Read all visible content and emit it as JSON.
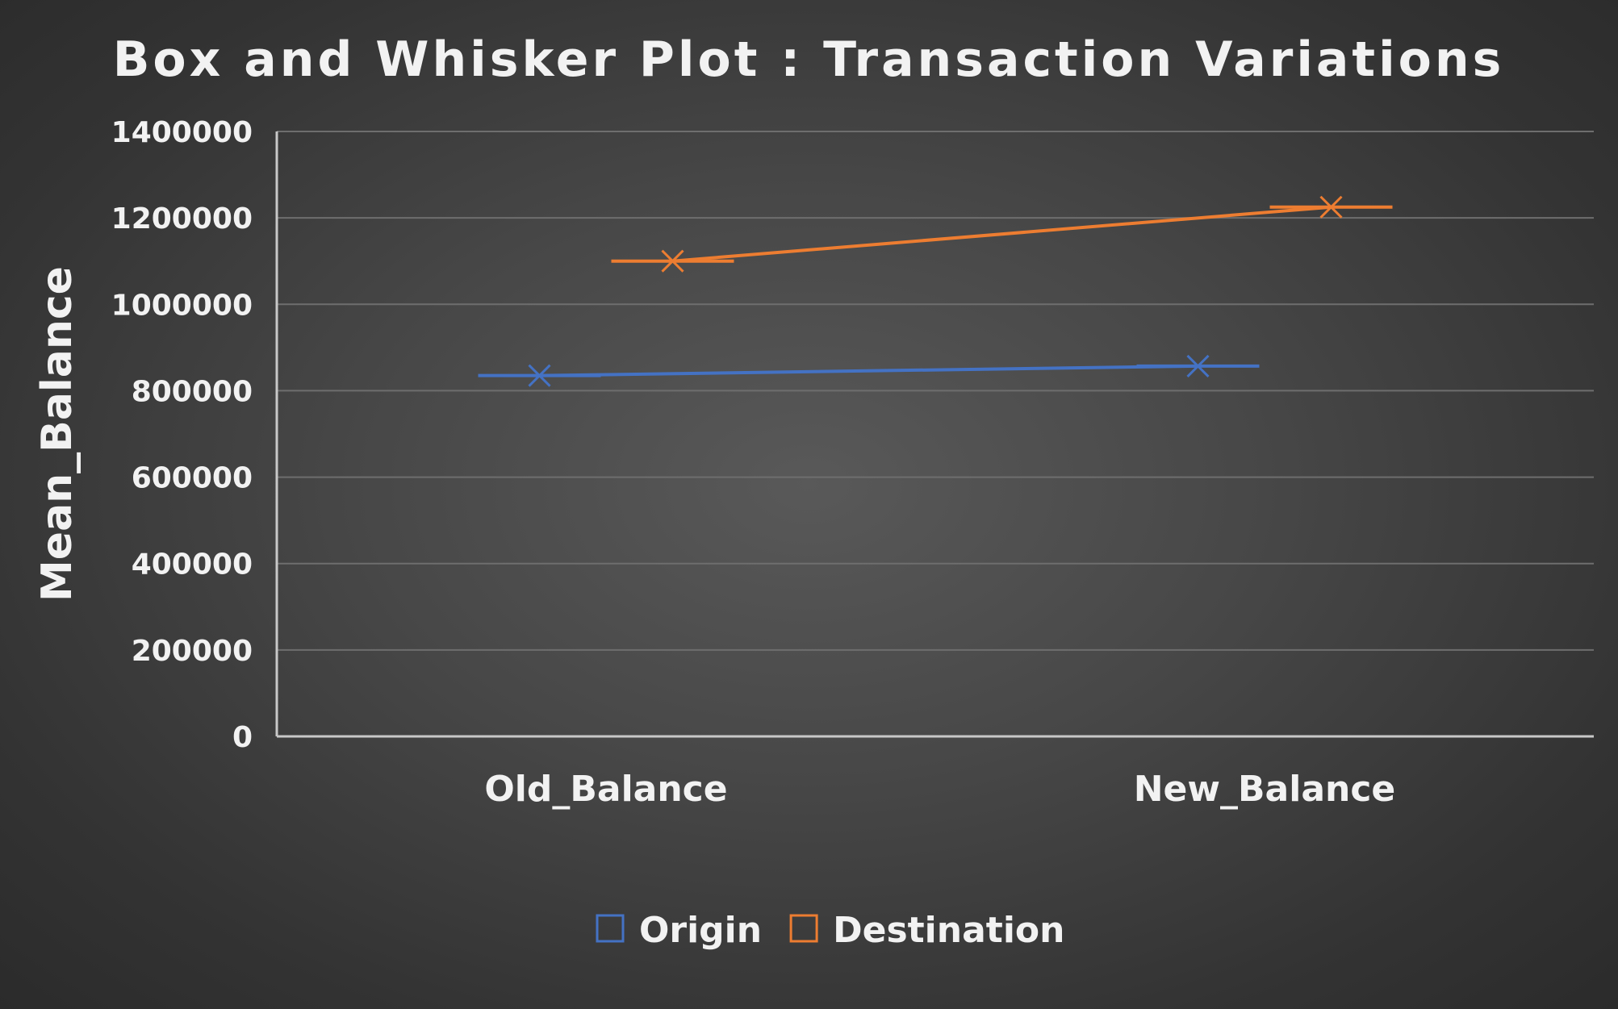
{
  "chart_data": {
    "type": "box",
    "title": "Box and Whisker Plot : Transaction Variations",
    "xlabel": "",
    "ylabel": "Mean_Balance",
    "categories": [
      "Old_Balance",
      "New_Balance"
    ],
    "ylim": [
      0,
      1400000
    ],
    "yticks": [
      {
        "value": 0,
        "label": "0"
      },
      {
        "value": 200000,
        "label": "200000"
      },
      {
        "value": 400000,
        "label": "400000"
      },
      {
        "value": 600000,
        "label": "600000"
      },
      {
        "value": 800000,
        "label": "800000"
      },
      {
        "value": 1000000,
        "label": "1000000"
      },
      {
        "value": 1200000,
        "label": "1200000"
      },
      {
        "value": 1400000,
        "label": "1400000"
      }
    ],
    "grid": true,
    "legend_position": "bottom",
    "series": [
      {
        "name": "Origin",
        "color": "#4472c4",
        "means": [
          835000,
          857000
        ],
        "medians": [
          835000,
          857000
        ]
      },
      {
        "name": "Destination",
        "color": "#ed7d31",
        "means": [
          1100000,
          1225000
        ],
        "medians": [
          1100000,
          1225000
        ]
      }
    ]
  }
}
